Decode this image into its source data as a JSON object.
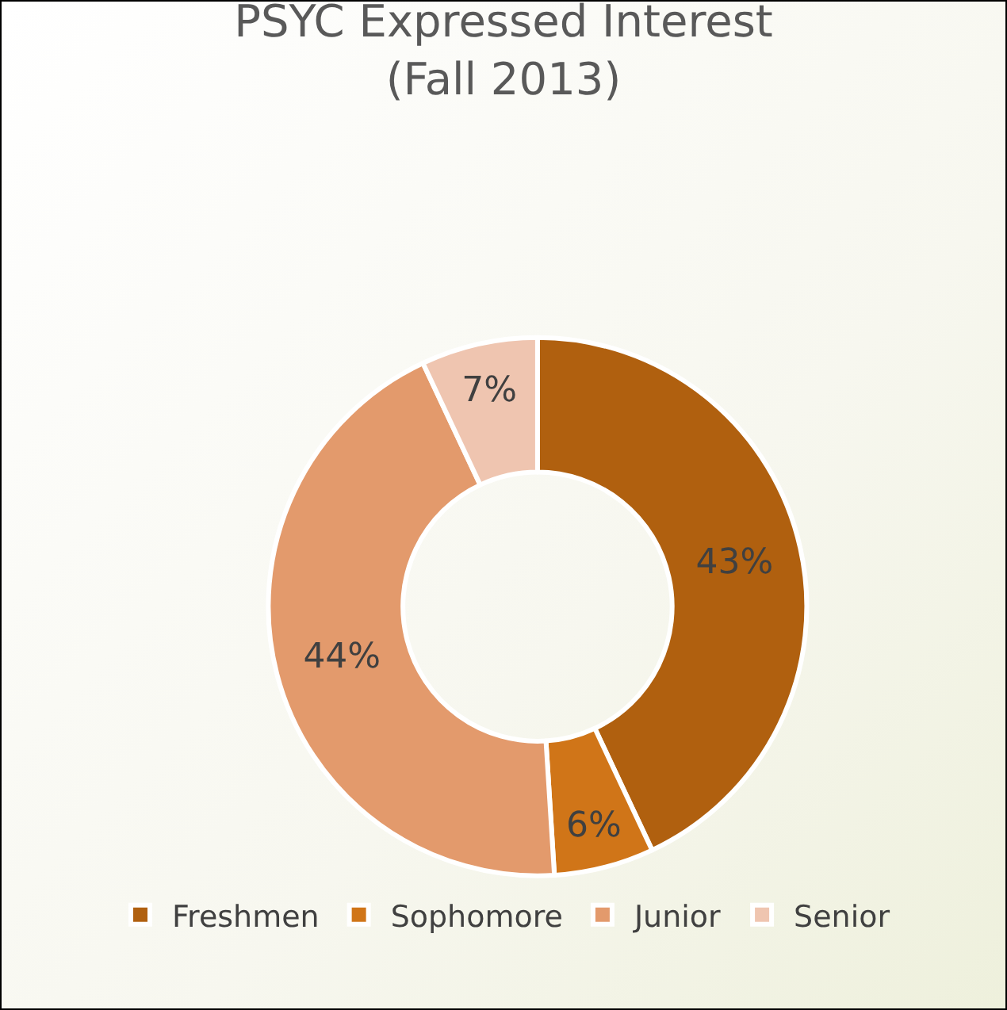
{
  "chart_data": {
    "type": "donut",
    "title": "PSYC Expressed Interest\n(Fall 2013)",
    "categories": [
      "Freshmen",
      "Sophomore",
      "Junior",
      "Senior"
    ],
    "values": [
      43,
      6,
      44,
      7
    ],
    "colors": [
      "#b0600f",
      "#d07518",
      "#e39a6c",
      "#efc5b0"
    ],
    "value_labels": [
      "43%",
      "6%",
      "44%",
      "7%"
    ],
    "legend": "bottom"
  }
}
